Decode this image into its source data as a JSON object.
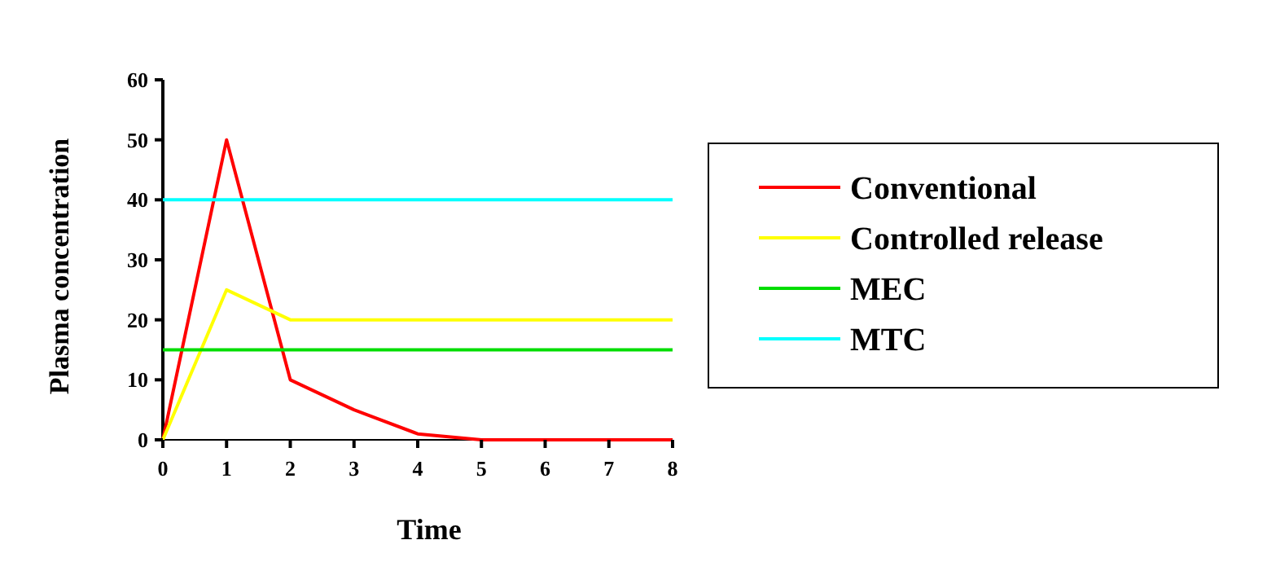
{
  "chart_data": {
    "type": "line",
    "xlabel": "Time",
    "ylabel": "Plasma concentration",
    "x": [
      0,
      1,
      2,
      3,
      4,
      5,
      6,
      7,
      8
    ],
    "series": [
      {
        "name": "Conventional",
        "color": "#ff0000",
        "values": [
          0,
          50,
          10,
          5,
          1,
          0,
          0,
          0,
          0
        ]
      },
      {
        "name": "Controlled release",
        "color": "#ffff00",
        "values": [
          0,
          25,
          20,
          20,
          20,
          20,
          20,
          20,
          20
        ]
      },
      {
        "name": "MEC",
        "color": "#00dd00",
        "values": [
          15,
          15,
          15,
          15,
          15,
          15,
          15,
          15,
          15
        ]
      },
      {
        "name": "MTC",
        "color": "#00ffff",
        "values": [
          40,
          40,
          40,
          40,
          40,
          40,
          40,
          40,
          40
        ]
      }
    ],
    "xlim": [
      0,
      8
    ],
    "xticks": [
      0,
      1,
      2,
      3,
      4,
      5,
      6,
      7,
      8
    ],
    "ylim": [
      0,
      60
    ],
    "yticks": [
      0,
      10,
      20,
      30,
      40,
      50,
      60
    ],
    "grid": false,
    "legend": "right",
    "marker": "none",
    "line_style": "solid"
  }
}
